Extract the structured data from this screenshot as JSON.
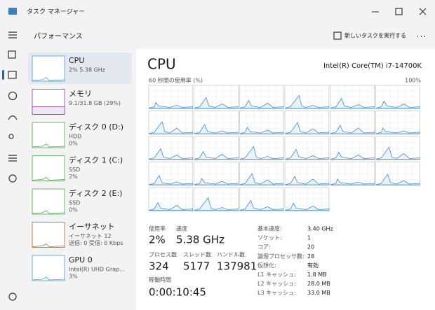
{
  "window_title": "タスク マネージャー",
  "page_header": "パフォーマンス",
  "run_task_button": "新しいタスクを実行する",
  "sidebar": [
    {
      "name": "CPU",
      "lines": [
        "2% 5.38 GHz"
      ]
    },
    {
      "name": "メモリ",
      "lines": [
        "9.1/31.8 GB (29%)"
      ]
    },
    {
      "name": "ディスク 0 (D:)",
      "lines": [
        "HDD",
        "0%"
      ]
    },
    {
      "name": "ディスク 1 (C:)",
      "lines": [
        "SSD",
        "2%"
      ]
    },
    {
      "name": "ディスク 2 (E:)",
      "lines": [
        "SSD",
        "0%"
      ]
    },
    {
      "name": "イーサネット",
      "lines": [
        "イーサネット 12",
        "送信: 0 受信: 0 Kbps"
      ]
    },
    {
      "name": "GPU 0",
      "lines": [
        "Intel(R) UHD Grap...",
        "3%"
      ]
    }
  ],
  "main": {
    "title": "CPU",
    "model": "Intel(R) Core(TM) i7-14700K",
    "graph_label": "60 秒間の使用率 (%)",
    "graph_max": "100%",
    "stats": [
      {
        "label": "使用率",
        "value": "2%"
      },
      {
        "label": "速度",
        "value": "5.38 GHz"
      },
      {
        "label": "プロセス数",
        "value": "324"
      },
      {
        "label": "スレッド数",
        "value": "5177"
      },
      {
        "label": "ハンドル数",
        "value": "137981"
      },
      {
        "label": "稼働時間",
        "value": "0:00:10:45"
      }
    ],
    "details": [
      {
        "label": "基本速度:",
        "value": "3.40 GHz"
      },
      {
        "label": "ソケット:",
        "value": "1"
      },
      {
        "label": "コア:",
        "value": "20"
      },
      {
        "label": "論理プロセッサ数:",
        "value": "28"
      },
      {
        "label": "仮想化:",
        "value": "有効"
      },
      {
        "label": "L1 キャッシュ:",
        "value": "1.8 MB"
      },
      {
        "label": "L2 キャッシュ:",
        "value": "28.0 MB"
      },
      {
        "label": "L3 キャッシュ:",
        "value": "33.0 MB"
      }
    ]
  }
}
